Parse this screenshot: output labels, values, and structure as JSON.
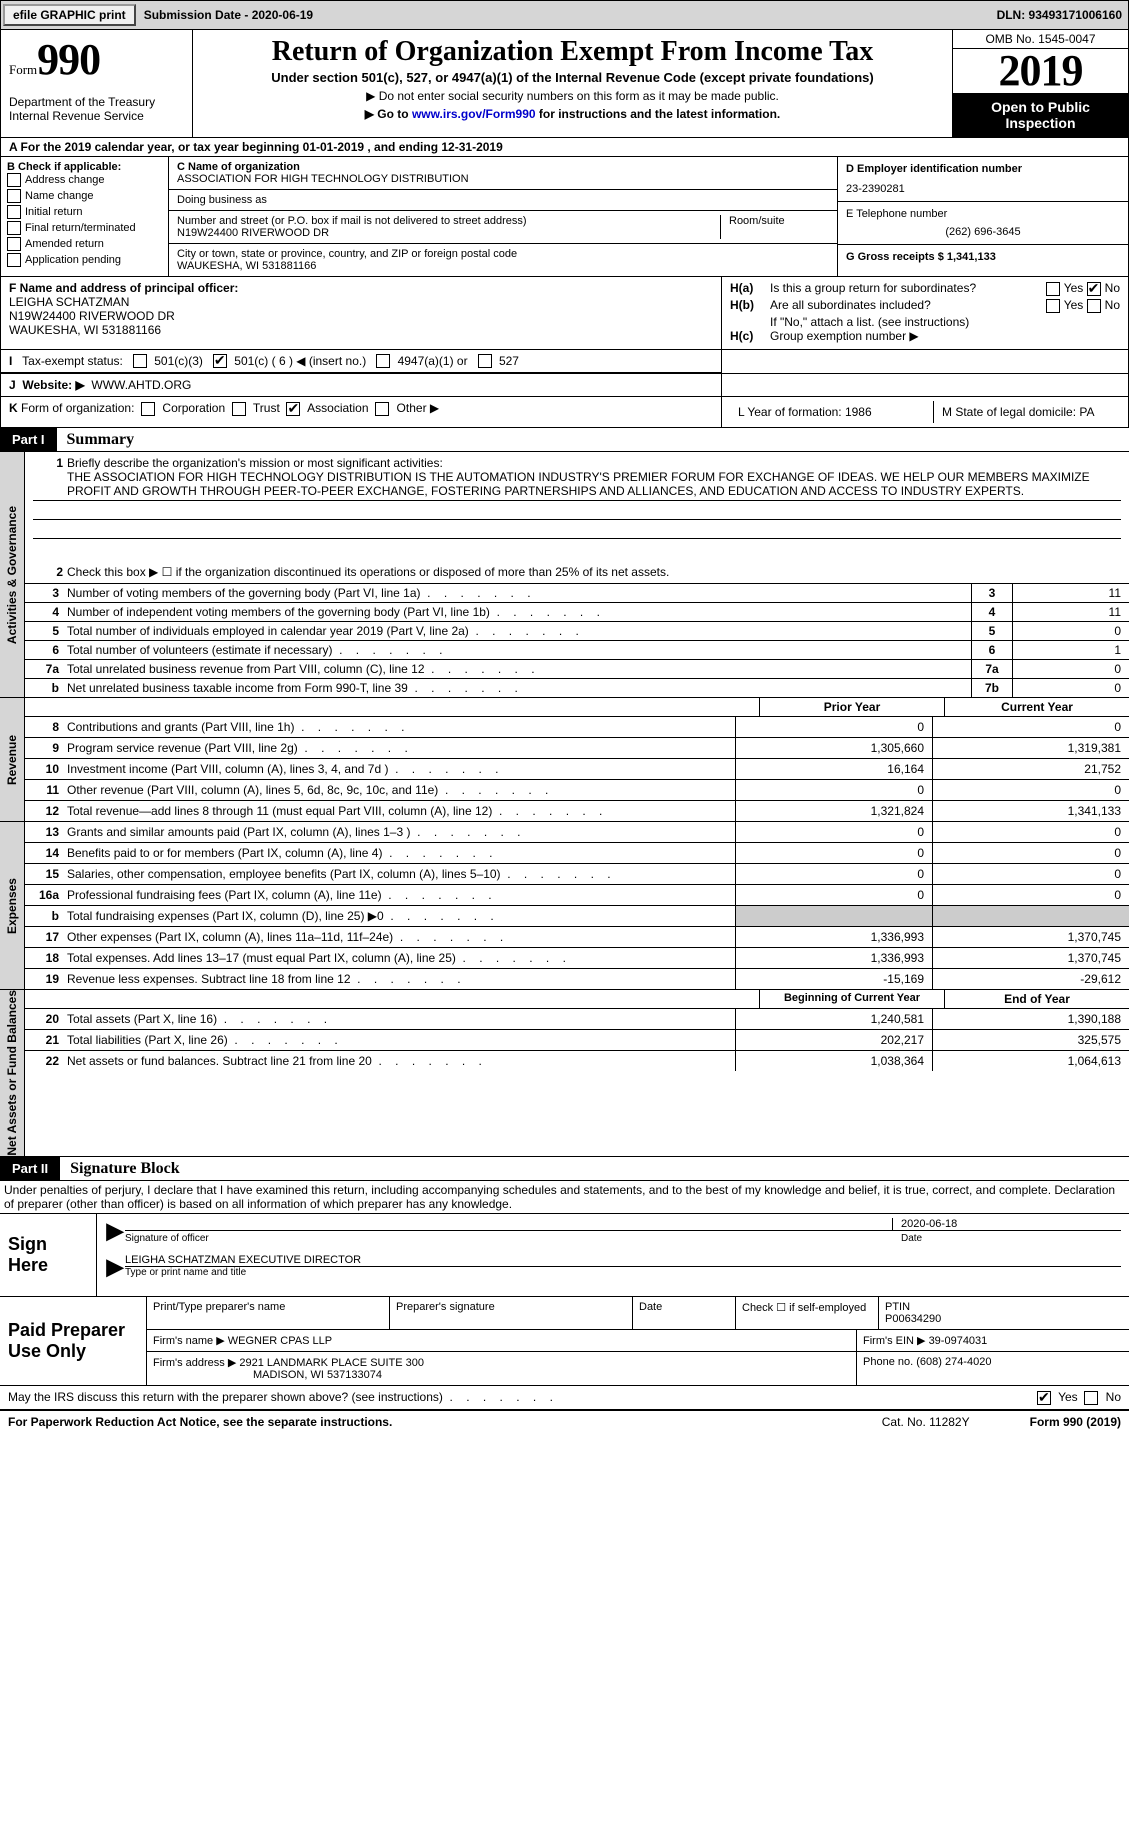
{
  "topbar": {
    "efile_btn": "efile GRAPHIC print",
    "submission_label": "Submission Date - 2020-06-19",
    "dln_label": "DLN: 93493171006160"
  },
  "header": {
    "form_label": "Form",
    "form_num": "990",
    "dept": "Department of the Treasury\nInternal Revenue Service",
    "title": "Return of Organization Exempt From Income Tax",
    "subtitle": "Under section 501(c), 527, or 4947(a)(1) of the Internal Revenue Code (except private foundations)",
    "note1": "▶ Do not enter social security numbers on this form as it may be made public.",
    "note2_pre": "▶ Go to ",
    "note2_link": "www.irs.gov/Form990",
    "note2_post": " for instructions and the latest information.",
    "omb": "OMB No. 1545-0047",
    "taxyear": "2019",
    "inspect": "Open to Public Inspection"
  },
  "rowA": "A For the 2019 calendar year, or tax year beginning 01-01-2019   , and ending 12-31-2019",
  "secB": {
    "label": "B Check if applicable:",
    "opts": [
      "Address change",
      "Name change",
      "Initial return",
      "Final return/terminated",
      "Amended return",
      "Application pending"
    ]
  },
  "secC": {
    "name_lbl": "C Name of organization",
    "name": "ASSOCIATION FOR HIGH TECHNOLOGY DISTRIBUTION",
    "dba_lbl": "Doing business as",
    "dba": "",
    "addr_lbl": "Number and street (or P.O. box if mail is not delivered to street address)",
    "room_lbl": "Room/suite",
    "addr": "N19W24400 RIVERWOOD DR",
    "city_lbl": "City or town, state or province, country, and ZIP or foreign postal code",
    "city": "WAUKESHA, WI  531881166"
  },
  "secD": {
    "label": "D Employer identification number",
    "val": "23-2390281"
  },
  "secE": {
    "label": "E Telephone number",
    "val": "(262) 696-3645"
  },
  "secG": {
    "label": "G Gross receipts $ 1,341,133"
  },
  "secF": {
    "label": "F Name and address of principal officer:",
    "name": "LEIGHA SCHATZMAN",
    "addr1": "N19W24400 RIVERWOOD DR",
    "addr2": "WAUKESHA, WI  531881166"
  },
  "secH": {
    "a_lbl": "H(a)",
    "a_txt": "Is this a group return for subordinates?",
    "b_lbl": "H(b)",
    "b_txt": "Are all subordinates included?",
    "note": "If \"No,\" attach a list. (see instructions)",
    "c_lbl": "H(c)",
    "c_txt": "Group exemption number ▶",
    "yes": "Yes",
    "no": "No"
  },
  "secI": {
    "label": "I",
    "txt": "Tax-exempt status:",
    "opts": {
      "c3": "501(c)(3)",
      "c": "501(c) ( 6 ) ◀ (insert no.)",
      "a1": "4947(a)(1) or",
      "527": "527"
    }
  },
  "secJ": {
    "label": "J",
    "txt": "Website: ▶",
    "val": "WWW.AHTD.ORG"
  },
  "secK": {
    "label": "K",
    "txt": "Form of organization:",
    "opts": [
      "Corporation",
      "Trust",
      "Association",
      "Other ▶"
    ],
    "checked": "Association"
  },
  "secL": {
    "txt": "L Year of formation: 1986"
  },
  "secM": {
    "txt": "M State of legal domicile: PA"
  },
  "part1": {
    "num": "Part I",
    "title": "Summary"
  },
  "summary": {
    "tab": "Activities & Governance",
    "q1_lbl": "1",
    "q1_txt": "Briefly describe the organization's mission or most significant activities:",
    "q1_val": "THE ASSOCIATION FOR HIGH TECHNOLOGY DISTRIBUTION IS THE AUTOMATION INDUSTRY'S PREMIER FORUM FOR EXCHANGE OF IDEAS. WE HELP OUR MEMBERS MAXIMIZE PROFIT AND GROWTH THROUGH PEER-TO-PEER EXCHANGE, FOSTERING PARTNERSHIPS AND ALLIANCES, AND EDUCATION AND ACCESS TO INDUSTRY EXPERTS.",
    "q2": "Check this box ▶ ☐ if the organization discontinued its operations or disposed of more than 25% of its net assets.",
    "rows": [
      {
        "n": "3",
        "t": "Number of voting members of the governing body (Part VI, line 1a)",
        "box": "3",
        "v": "11"
      },
      {
        "n": "4",
        "t": "Number of independent voting members of the governing body (Part VI, line 1b)",
        "box": "4",
        "v": "11"
      },
      {
        "n": "5",
        "t": "Total number of individuals employed in calendar year 2019 (Part V, line 2a)",
        "box": "5",
        "v": "0"
      },
      {
        "n": "6",
        "t": "Total number of volunteers (estimate if necessary)",
        "box": "6",
        "v": "1"
      },
      {
        "n": "7a",
        "t": "Total unrelated business revenue from Part VIII, column (C), line 12",
        "box": "7a",
        "v": "0"
      },
      {
        "n": "b",
        "t": "Net unrelated business taxable income from Form 990-T, line 39",
        "box": "7b",
        "v": "0"
      }
    ]
  },
  "finhdr": {
    "prior": "Prior Year",
    "current": "Current Year"
  },
  "revenue": {
    "tab": "Revenue",
    "rows": [
      {
        "n": "8",
        "t": "Contributions and grants (Part VIII, line 1h)",
        "p": "0",
        "c": "0"
      },
      {
        "n": "9",
        "t": "Program service revenue (Part VIII, line 2g)",
        "p": "1,305,660",
        "c": "1,319,381"
      },
      {
        "n": "10",
        "t": "Investment income (Part VIII, column (A), lines 3, 4, and 7d )",
        "p": "16,164",
        "c": "21,752"
      },
      {
        "n": "11",
        "t": "Other revenue (Part VIII, column (A), lines 5, 6d, 8c, 9c, 10c, and 11e)",
        "p": "0",
        "c": "0"
      },
      {
        "n": "12",
        "t": "Total revenue—add lines 8 through 11 (must equal Part VIII, column (A), line 12)",
        "p": "1,321,824",
        "c": "1,341,133"
      }
    ]
  },
  "expenses": {
    "tab": "Expenses",
    "rows": [
      {
        "n": "13",
        "t": "Grants and similar amounts paid (Part IX, column (A), lines 1–3 )",
        "p": "0",
        "c": "0"
      },
      {
        "n": "14",
        "t": "Benefits paid to or for members (Part IX, column (A), line 4)",
        "p": "0",
        "c": "0"
      },
      {
        "n": "15",
        "t": "Salaries, other compensation, employee benefits (Part IX, column (A), lines 5–10)",
        "p": "0",
        "c": "0"
      },
      {
        "n": "16a",
        "t": "Professional fundraising fees (Part IX, column (A), line 11e)",
        "p": "0",
        "c": "0"
      },
      {
        "n": "b",
        "t": "Total fundraising expenses (Part IX, column (D), line 25) ▶0",
        "p": "",
        "c": "",
        "shade": true
      },
      {
        "n": "17",
        "t": "Other expenses (Part IX, column (A), lines 11a–11d, 11f–24e)",
        "p": "1,336,993",
        "c": "1,370,745"
      },
      {
        "n": "18",
        "t": "Total expenses. Add lines 13–17 (must equal Part IX, column (A), line 25)",
        "p": "1,336,993",
        "c": "1,370,745"
      },
      {
        "n": "19",
        "t": "Revenue less expenses. Subtract line 18 from line 12",
        "p": "-15,169",
        "c": "-29,612"
      }
    ]
  },
  "balhdr": {
    "prior": "Beginning of Current Year",
    "current": "End of Year"
  },
  "balances": {
    "tab": "Net Assets or Fund Balances",
    "rows": [
      {
        "n": "20",
        "t": "Total assets (Part X, line 16)",
        "p": "1,240,581",
        "c": "1,390,188"
      },
      {
        "n": "21",
        "t": "Total liabilities (Part X, line 26)",
        "p": "202,217",
        "c": "325,575"
      },
      {
        "n": "22",
        "t": "Net assets or fund balances. Subtract line 21 from line 20",
        "p": "1,038,364",
        "c": "1,064,613"
      }
    ]
  },
  "part2": {
    "num": "Part II",
    "title": "Signature Block"
  },
  "sig": {
    "declare": "Under penalties of perjury, I declare that I have examined this return, including accompanying schedules and statements, and to the best of my knowledge and belief, it is true, correct, and complete. Declaration of preparer (other than officer) is based on all information of which preparer has any knowledge.",
    "here": "Sign Here",
    "sig_lbl": "Signature of officer",
    "date_lbl": "Date",
    "date": "2020-06-18",
    "name": "LEIGHA SCHATZMAN  EXECUTIVE DIRECTOR",
    "name_lbl": "Type or print name and title"
  },
  "prep": {
    "label": "Paid Preparer Use Only",
    "r1": {
      "c1_lbl": "Print/Type preparer's name",
      "c1": "",
      "c2_lbl": "Preparer's signature",
      "c3_lbl": "Date",
      "c4_lbl": "Check ☐ if self-employed",
      "c5_lbl": "PTIN",
      "c5": "P00634290"
    },
    "r2": {
      "lbl": "Firm's name      ▶",
      "val": "WEGNER CPAS LLP",
      "ein_lbl": "Firm's EIN ▶",
      "ein": "39-0974031"
    },
    "r3": {
      "lbl": "Firm's address ▶",
      "val1": "2921 LANDMARK PLACE SUITE 300",
      "val2": "MADISON, WI  537133074",
      "ph_lbl": "Phone no.",
      "ph": "(608) 274-4020"
    }
  },
  "irs_discuss": {
    "txt": "May the IRS discuss this return with the preparer shown above? (see instructions)",
    "yes": "Yes",
    "no": "No"
  },
  "footer": {
    "left": "For Paperwork Reduction Act Notice, see the separate instructions.",
    "cat": "Cat. No. 11282Y",
    "right": "Form 990 (2019)"
  }
}
